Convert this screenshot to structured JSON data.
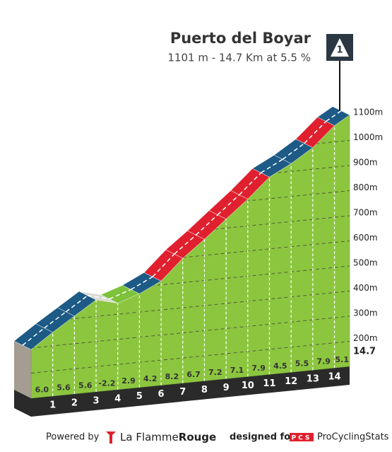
{
  "chart_data": {
    "type": "climb-profile",
    "title": "Puerto del Boyar",
    "subtitle": "1101 m - 14.7 Km at 5.5 %",
    "category": "1",
    "x": [
      0,
      1,
      2,
      3,
      4,
      5,
      6,
      7,
      8,
      9,
      10,
      11,
      12,
      13,
      14,
      14.7
    ],
    "elevation": [
      294,
      354,
      410,
      466,
      444,
      473,
      515,
      597,
      664,
      736,
      807,
      886,
      931,
      986,
      1065,
      1101
    ],
    "gradients": [
      6.0,
      5.6,
      5.6,
      -2.2,
      2.9,
      4.2,
      8.2,
      6.7,
      7.2,
      7.1,
      7.9,
      4.5,
      5.5,
      7.9,
      5.1
    ],
    "gradient_labels": [
      "6.0",
      "5.6",
      "5.6",
      "-2.2",
      "2.9",
      "4.2",
      "8.2",
      "6.7",
      "7.2",
      "7.1",
      "7.9",
      "4.5",
      "5.5",
      "7.9",
      "5.1"
    ],
    "segment_colors": [
      "#1d5a86",
      "#1d5a86",
      "#1d5a86",
      "#d8dcd2",
      "#7cc23a",
      "#1d5a86",
      "#e0202e",
      "#e0202e",
      "#e0202e",
      "#e0202e",
      "#e0202e",
      "#1d5a86",
      "#1d5a86",
      "#e0202e",
      "#1d5a86"
    ],
    "face_color": "#8cc63f",
    "xlim": [
      0,
      14.7
    ],
    "xticks": [
      1,
      2,
      3,
      4,
      5,
      6,
      7,
      8,
      9,
      10,
      11,
      12,
      13,
      14,
      14.7
    ],
    "ylim": [
      100,
      1100
    ],
    "yticks": [
      {
        "value": 200,
        "label": "200m"
      },
      {
        "value": 300,
        "label": "300m"
      },
      {
        "value": 400,
        "label": "400m"
      },
      {
        "value": 500,
        "label": "500m"
      },
      {
        "value": 600,
        "label": "600m"
      },
      {
        "value": 700,
        "label": "700m"
      },
      {
        "value": 800,
        "label": "800m"
      },
      {
        "value": 900,
        "label": "900m"
      },
      {
        "value": 1000,
        "label": "1000m"
      },
      {
        "value": 1100,
        "label": "1100m"
      }
    ],
    "grid": true
  },
  "footer": {
    "powered_by": "Powered by",
    "brand_a": "La Flamme",
    "brand_b": "Rouge",
    "designed_for": "designed for",
    "pcs": "PCS",
    "site": "ProCyclingStats"
  }
}
